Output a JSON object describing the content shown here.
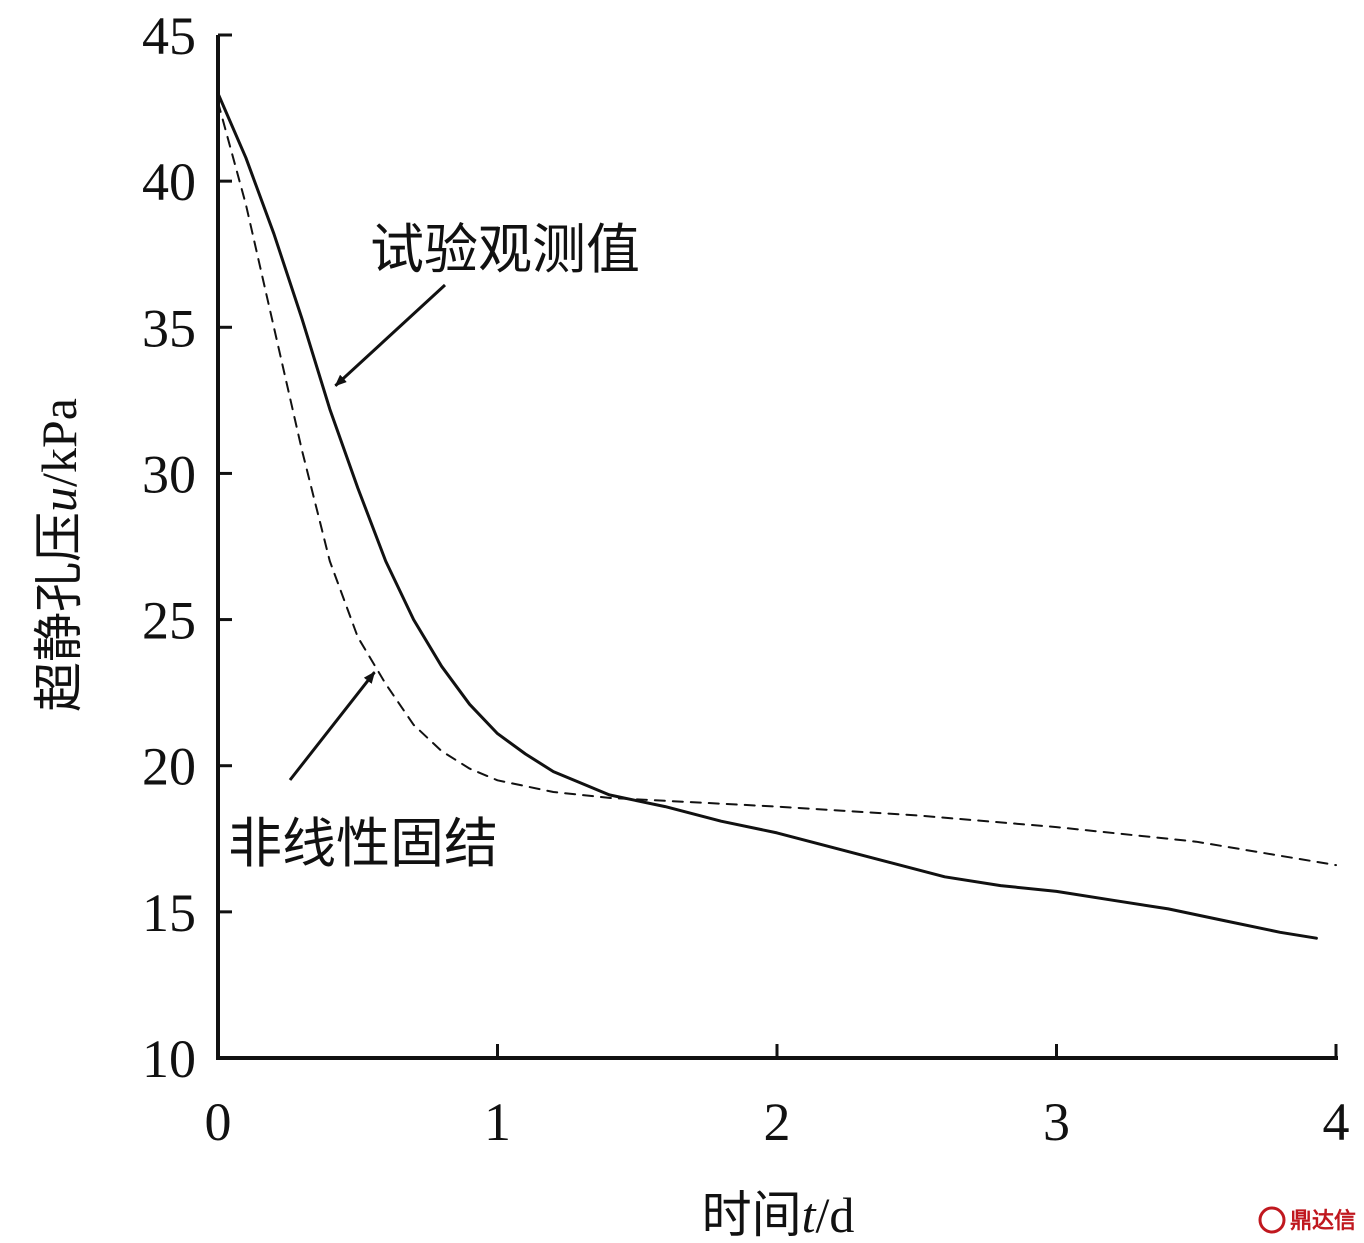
{
  "chart_data": {
    "type": "line",
    "xlabel_prefix": "时间",
    "xlabel_var": "t",
    "xlabel_unit": "/d",
    "ylabel_prefix": "超静孔压",
    "ylabel_var": "u",
    "ylabel_unit": "/kPa",
    "xlim": [
      0,
      4
    ],
    "ylim": [
      10,
      45
    ],
    "xticks": [
      "0",
      "1",
      "2",
      "3",
      "4"
    ],
    "yticks": [
      "10",
      "15",
      "20",
      "25",
      "30",
      "35",
      "40",
      "45"
    ],
    "grid": false,
    "series": [
      {
        "name": "试验观测值",
        "style": "solid",
        "color": "#111111",
        "x": [
          0,
          0.1,
          0.2,
          0.3,
          0.4,
          0.5,
          0.6,
          0.7,
          0.8,
          0.9,
          1.0,
          1.1,
          1.2,
          1.3,
          1.4,
          1.5,
          1.6,
          1.8,
          2.0,
          2.2,
          2.4,
          2.6,
          2.8,
          3.0,
          3.2,
          3.4,
          3.6,
          3.8,
          3.93
        ],
        "y": [
          43.0,
          40.8,
          38.2,
          35.3,
          32.2,
          29.5,
          27.0,
          25.0,
          23.4,
          22.1,
          21.1,
          20.4,
          19.8,
          19.4,
          19.0,
          18.8,
          18.6,
          18.1,
          17.7,
          17.2,
          16.7,
          16.2,
          15.9,
          15.7,
          15.4,
          15.1,
          14.7,
          14.3,
          14.1
        ]
      },
      {
        "name": "非线性固结",
        "style": "dashed",
        "color": "#111111",
        "x": [
          0,
          0.1,
          0.2,
          0.3,
          0.4,
          0.5,
          0.6,
          0.7,
          0.8,
          0.9,
          1.0,
          1.2,
          1.4,
          1.6,
          1.8,
          2.0,
          2.5,
          3.0,
          3.5,
          4.0
        ],
        "y": [
          42.7,
          39.2,
          35.0,
          30.8,
          27.0,
          24.4,
          22.8,
          21.4,
          20.5,
          19.9,
          19.5,
          19.1,
          18.9,
          18.8,
          18.7,
          18.6,
          18.3,
          17.9,
          17.4,
          16.6
        ]
      }
    ],
    "annotations": [
      {
        "text": "试验观测值",
        "series": "试验观测值",
        "arrow_to": [
          0.42,
          33.0
        ]
      },
      {
        "text": "非线性固结",
        "series": "非线性固结",
        "arrow_to": [
          0.56,
          23.2
        ]
      }
    ]
  },
  "watermark": {
    "text": "鼎达信",
    "logo_color": "#c0181f"
  }
}
